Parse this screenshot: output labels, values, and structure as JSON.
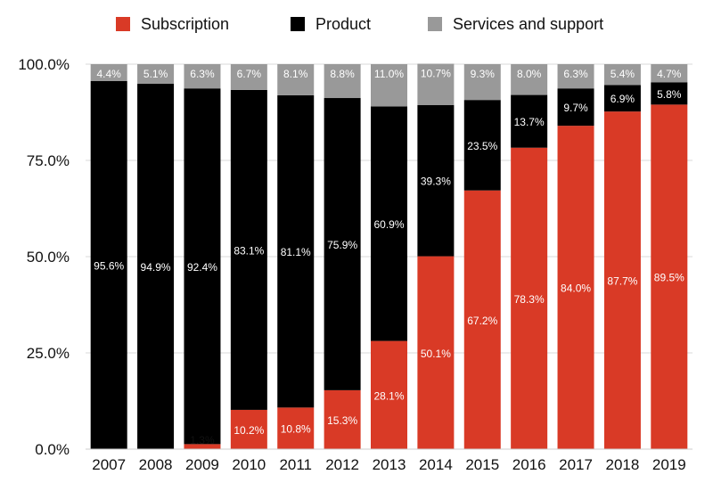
{
  "colors": {
    "subscription": "#d93a26",
    "product": "#000000",
    "services": "#999999"
  },
  "chart_data": {
    "type": "bar",
    "stacked": true,
    "grid": true,
    "legend_position": "top",
    "categories": [
      "2007",
      "2008",
      "2009",
      "2010",
      "2011",
      "2012",
      "2013",
      "2014",
      "2015",
      "2016",
      "2017",
      "2018",
      "2019"
    ],
    "ylim": [
      0,
      100
    ],
    "yticks": [
      "0.0%",
      "25.0%",
      "50.0%",
      "75.0%",
      "100.0%"
    ],
    "series": [
      {
        "name": "Subscription",
        "color_key": "subscription",
        "values": [
          0,
          0,
          1.3,
          10.2,
          10.8,
          15.3,
          28.1,
          50.1,
          67.2,
          78.3,
          84.0,
          87.7,
          89.5
        ],
        "labels": [
          "",
          "",
          "1.3%",
          "10.2%",
          "10.8%",
          "15.3%",
          "28.1%",
          "50.1%",
          "67.2%",
          "78.3%",
          "84.0%",
          "87.7%",
          "89.5%"
        ]
      },
      {
        "name": "Product",
        "color_key": "product",
        "values": [
          95.6,
          94.9,
          92.4,
          83.1,
          81.1,
          75.9,
          60.9,
          39.3,
          23.5,
          13.7,
          9.7,
          6.9,
          5.8
        ],
        "labels": [
          "95.6%",
          "94.9%",
          "92.4%",
          "83.1%",
          "81.1%",
          "75.9%",
          "60.9%",
          "39.3%",
          "23.5%",
          "13.7%",
          "9.7%",
          "6.9%",
          "5.8%"
        ]
      },
      {
        "name": "Services and support",
        "color_key": "services",
        "values": [
          4.4,
          5.1,
          6.3,
          6.7,
          8.1,
          8.8,
          11.0,
          10.7,
          9.3,
          8.0,
          6.3,
          5.4,
          4.7
        ],
        "labels": [
          "4.4%",
          "5.1%",
          "6.3%",
          "6.7%",
          "8.1%",
          "8.8%",
          "11.0%",
          "10.7%",
          "9.3%",
          "8.0%",
          "6.3%",
          "5.4%",
          "4.7%"
        ]
      }
    ]
  }
}
